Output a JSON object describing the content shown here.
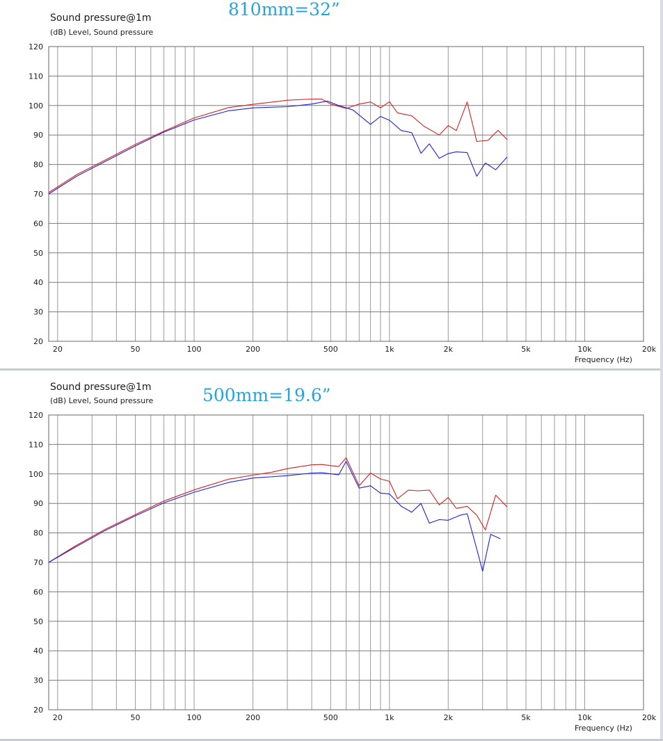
{
  "chart_data": [
    {
      "type": "line",
      "title": "Sound pressure@1m",
      "subtitle": "(dB)  Level, Sound pressure",
      "annotation": "810mm=32”",
      "xlabel": "Frequency  (Hz)",
      "ylabel": "",
      "x_scale": "log",
      "xlim": [
        18,
        20000
      ],
      "ylim": [
        20,
        120
      ],
      "grid": true,
      "x_ticks": [
        20,
        50,
        100,
        200,
        500,
        1000,
        2000,
        5000,
        10000,
        20000
      ],
      "x_tick_labels": [
        "20",
        "50",
        "100",
        "200",
        "500",
        "1k",
        "2k",
        "5k",
        "10k",
        "20k"
      ],
      "y_ticks": [
        20,
        30,
        40,
        50,
        60,
        70,
        80,
        90,
        100,
        110,
        120
      ],
      "y_tick_labels": [
        "20",
        "30",
        "40",
        "50",
        "60",
        "70",
        "80",
        "90",
        "100",
        "110",
        "120"
      ],
      "series": [
        {
          "color": "#d42020",
          "points": [
            [
              18,
              70.5
            ],
            [
              25,
              76.5
            ],
            [
              35,
              81.5
            ],
            [
              50,
              86.8
            ],
            [
              70,
              91.3
            ],
            [
              100,
              95.8
            ],
            [
              150,
              99.3
            ],
            [
              200,
              100.4
            ],
            [
              300,
              101.8
            ],
            [
              400,
              102.2
            ],
            [
              450,
              102.2
            ],
            [
              500,
              100.5
            ],
            [
              600,
              99
            ],
            [
              700,
              100.5
            ],
            [
              800,
              101.2
            ],
            [
              900,
              99.2
            ],
            [
              1000,
              101.3
            ],
            [
              1100,
              97.5
            ],
            [
              1300,
              96.5
            ],
            [
              1500,
              93
            ],
            [
              1800,
              90
            ],
            [
              2000,
              93.2
            ],
            [
              2200,
              91.5
            ],
            [
              2500,
              101.2
            ],
            [
              2800,
              87.8
            ],
            [
              3200,
              88.2
            ],
            [
              3600,
              91.6
            ],
            [
              4000,
              88.5
            ]
          ]
        },
        {
          "color": "#2020d4",
          "points": [
            [
              18,
              70
            ],
            [
              25,
              76
            ],
            [
              35,
              81
            ],
            [
              50,
              86.3
            ],
            [
              70,
              91
            ],
            [
              100,
              95.1
            ],
            [
              150,
              98.2
            ],
            [
              200,
              99.2
            ],
            [
              300,
              99.6
            ],
            [
              400,
              100.5
            ],
            [
              480,
              101.5
            ],
            [
              550,
              100
            ],
            [
              650,
              98.5
            ],
            [
              800,
              93.6
            ],
            [
              900,
              96.3
            ],
            [
              1000,
              95
            ],
            [
              1150,
              91.5
            ],
            [
              1300,
              90.8
            ],
            [
              1450,
              83.8
            ],
            [
              1600,
              87
            ],
            [
              1800,
              82.1
            ],
            [
              2000,
              83.7
            ],
            [
              2200,
              84.3
            ],
            [
              2500,
              84
            ],
            [
              2800,
              76
            ],
            [
              3100,
              80.5
            ],
            [
              3500,
              78.2
            ],
            [
              4000,
              82.5
            ]
          ]
        }
      ]
    },
    {
      "type": "line",
      "title": "Sound pressure@1m",
      "subtitle": "(dB)  Level, Sound pressure",
      "annotation": "500mm=19.6”",
      "xlabel": "Frequency  (Hz)",
      "ylabel": "",
      "x_scale": "log",
      "xlim": [
        18,
        20000
      ],
      "ylim": [
        20,
        120
      ],
      "grid": true,
      "x_ticks": [
        20,
        50,
        100,
        200,
        500,
        1000,
        2000,
        5000,
        10000,
        20000
      ],
      "x_tick_labels": [
        "20",
        "50",
        "100",
        "200",
        "500",
        "1k",
        "2k",
        "5k",
        "10k",
        "20k"
      ],
      "y_ticks": [
        20,
        30,
        40,
        50,
        60,
        70,
        80,
        90,
        100,
        110,
        120
      ],
      "y_tick_labels": [
        "20",
        "30",
        "40",
        "50",
        "60",
        "70",
        "80",
        "90",
        "100",
        "110",
        "120"
      ],
      "series": [
        {
          "color": "#d42020",
          "points": [
            [
              18,
              70
            ],
            [
              25,
              75.8
            ],
            [
              35,
              81.2
            ],
            [
              50,
              86.2
            ],
            [
              70,
              90.8
            ],
            [
              100,
              94.6
            ],
            [
              150,
              98.2
            ],
            [
              200,
              99.6
            ],
            [
              250,
              100.6
            ],
            [
              300,
              101.8
            ],
            [
              400,
              103.1
            ],
            [
              450,
              103.2
            ],
            [
              550,
              102.5
            ],
            [
              600,
              105.5
            ],
            [
              700,
              96
            ],
            [
              800,
              100.3
            ],
            [
              900,
              98.3
            ],
            [
              1000,
              97.5
            ],
            [
              1100,
              91.6
            ],
            [
              1250,
              94.5
            ],
            [
              1400,
              94.3
            ],
            [
              1600,
              94.5
            ],
            [
              1800,
              89.5
            ],
            [
              2000,
              92
            ],
            [
              2200,
              88.3
            ],
            [
              2500,
              89
            ],
            [
              2800,
              86
            ],
            [
              3100,
              81
            ],
            [
              3500,
              92.8
            ],
            [
              4000,
              88.8
            ]
          ]
        },
        {
          "color": "#2020d4",
          "points": [
            [
              18,
              70
            ],
            [
              25,
              75.4
            ],
            [
              35,
              80.8
            ],
            [
              50,
              85.8
            ],
            [
              70,
              90.2
            ],
            [
              100,
              93.8
            ],
            [
              150,
              97.1
            ],
            [
              200,
              98.6
            ],
            [
              300,
              99.4
            ],
            [
              400,
              100.3
            ],
            [
              450,
              100.4
            ],
            [
              550,
              99.7
            ],
            [
              600,
              104.3
            ],
            [
              700,
              95.2
            ],
            [
              800,
              96
            ],
            [
              900,
              93.5
            ],
            [
              1000,
              93.2
            ],
            [
              1150,
              89
            ],
            [
              1300,
              87
            ],
            [
              1450,
              90
            ],
            [
              1600,
              83.3
            ],
            [
              1800,
              84.5
            ],
            [
              2000,
              84.3
            ],
            [
              2300,
              86
            ],
            [
              2500,
              86.5
            ],
            [
              2800,
              74.5
            ],
            [
              3000,
              67
            ],
            [
              3300,
              79.5
            ],
            [
              3700,
              78
            ]
          ]
        }
      ]
    }
  ]
}
